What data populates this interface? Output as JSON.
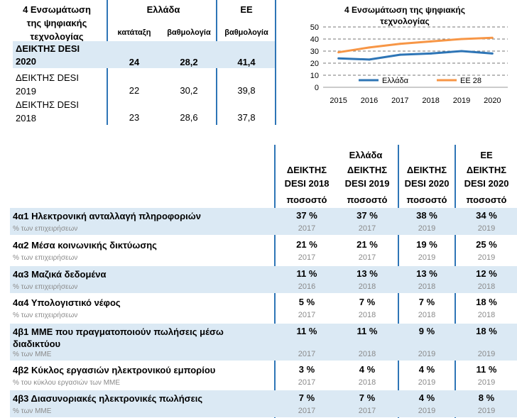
{
  "summary": {
    "title_l1": "4 Ενσωμάτωση",
    "title_l2": "της ψηφιακής",
    "title_l3": "τεχνολογίας",
    "greece": "Ελλάδα",
    "eu": "ΕΕ",
    "rank": "κατάταξη",
    "score_gr": "βαθμολογία",
    "score_eu": "βαθμολογία",
    "rows": [
      {
        "label_l1": "ΔΕΙΚΤΗΣ DESI",
        "label_l2": "2020",
        "rank": "24",
        "score": "28,2",
        "eu": "41,4"
      },
      {
        "label_l1": "ΔΕΙΚΤΗΣ DESI",
        "label_l2": "2019",
        "rank": "22",
        "score": "30,2",
        "eu": "39,8"
      },
      {
        "label_l1": "ΔΕΙΚΤΗΣ DESI",
        "label_l2": "2018",
        "rank": "23",
        "score": "28,6",
        "eu": "37,8"
      }
    ]
  },
  "chart_data": {
    "type": "line",
    "title_l1": "4 Ενσωμάτωση της ψηφιακής",
    "title_l2": "τεχνολογίας",
    "x": [
      "2015",
      "2016",
      "2017",
      "2018",
      "2019",
      "2020"
    ],
    "yticks": [
      "0",
      "10",
      "20",
      "30",
      "40",
      "50"
    ],
    "ylim": [
      0,
      50
    ],
    "grid": "dashed",
    "series": [
      {
        "name": "Ελλάδα",
        "color": "#2e75b6",
        "values": [
          24,
          23,
          27,
          28,
          30,
          28
        ]
      },
      {
        "name": "ΕΕ 28",
        "color": "#f79646",
        "values": [
          29,
          33,
          36,
          38,
          40,
          41
        ]
      }
    ]
  },
  "main": {
    "greece": "Ελλάδα",
    "eu": "ΕΕ",
    "col_l1": [
      "ΔΕΙΚΤΗΣ",
      "ΔΕΙΚΤΗΣ",
      "ΔΕΙΚΤΗΣ",
      "ΔΕΙΚΤΗΣ"
    ],
    "col_l2": [
      "DESI 2018",
      "DESI 2019",
      "DESI 2020",
      "DESI 2020"
    ],
    "unit": [
      "ποσοστό",
      "ποσοστό",
      "ποσοστό",
      "ποσοστό"
    ],
    "rows": [
      {
        "label": "4α1 Ηλεκτρονική ανταλλαγή πληροφοριών",
        "label2": "",
        "sub": "% των επιχειρήσεων",
        "values": [
          "37 %",
          "37 %",
          "38 %",
          "34 %"
        ],
        "years": [
          "2017",
          "2017",
          "2019",
          "2019"
        ]
      },
      {
        "label": "4α2 Μέσα κοινωνικής δικτύωσης",
        "label2": "",
        "sub": "% των επιχειρήσεων",
        "values": [
          "21 %",
          "21 %",
          "19 %",
          "25 %"
        ],
        "years": [
          "2017",
          "2017",
          "2019",
          "2019"
        ]
      },
      {
        "label": "4α3 Μαζικά δεδομένα",
        "label2": "",
        "sub": "% των επιχειρήσεων",
        "values": [
          "11 %",
          "13 %",
          "13 %",
          "12 %"
        ],
        "years": [
          "2016",
          "2018",
          "2018",
          "2018"
        ]
      },
      {
        "label": "4α4 Υπολογιστικό νέφος",
        "label2": "",
        "sub": "% των επιχειρήσεων",
        "values": [
          "5 %",
          "7 %",
          "7 %",
          "18 %"
        ],
        "years": [
          "2017",
          "2018",
          "2018",
          "2018"
        ]
      },
      {
        "label": "4β1 ΜΜΕ που πραγματοποιούν πωλήσεις μέσω",
        "label2": "διαδικτύου",
        "sub": "% των ΜΜΕ",
        "values": [
          "11 %",
          "11 %",
          "9 %",
          "18 %"
        ],
        "years": [
          "2017",
          "2018",
          "2019",
          "2019"
        ]
      },
      {
        "label": "4β2 Κύκλος εργασιών ηλεκτρονικού εμπορίου",
        "label2": "",
        "sub": "% του κύκλου εργασιών των ΜΜΕ",
        "values": [
          "3 %",
          "4 %",
          "4 %",
          "11 %"
        ],
        "years": [
          "2017",
          "2018",
          "2019",
          "2019"
        ]
      },
      {
        "label": "4β3 Διασυνοριακές ηλεκτρονικές πωλήσεις",
        "label2": "",
        "sub": "% των ΜΜΕ",
        "values": [
          "7 %",
          "7 %",
          "4 %",
          "8 %"
        ],
        "years": [
          "2017",
          "2017",
          "2019",
          "2019"
        ]
      }
    ]
  }
}
